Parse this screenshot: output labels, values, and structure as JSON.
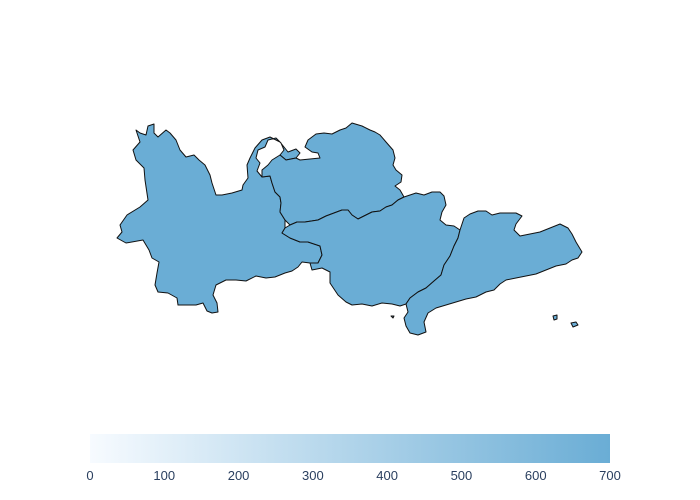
{
  "map": {
    "fill_color": "#6aadd5",
    "border_color": "#111111",
    "regions": [
      {
        "id": "region-west"
      },
      {
        "id": "region-north"
      },
      {
        "id": "region-central"
      },
      {
        "id": "region-east"
      },
      {
        "id": "island-small-1"
      },
      {
        "id": "island-small-2"
      },
      {
        "id": "island-small-3"
      }
    ]
  },
  "colorbar": {
    "min": 0,
    "max": 700,
    "color_low": "#f7fbff",
    "color_high": "#6aadd5",
    "ticks": [
      "0",
      "100",
      "200",
      "300",
      "400",
      "500",
      "600",
      "700"
    ]
  }
}
